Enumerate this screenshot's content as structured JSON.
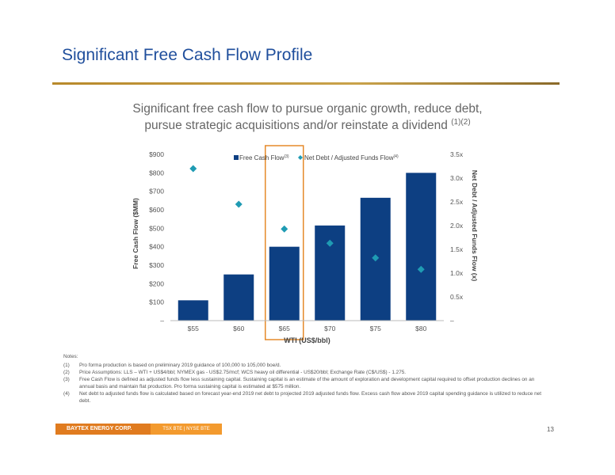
{
  "page": {
    "title": "Significant Free Cash Flow Profile",
    "subtitle_line1": "Significant free cash flow to pursue organic growth, reduce debt,",
    "subtitle_line2": "pursue strategic acquisitions and/or reinstate a dividend",
    "subtitle_sup": "(1)(2)",
    "page_number": "13"
  },
  "footer": {
    "brand": "BAYTEX ENERGY CORP.",
    "tickers": "TSX BTE  |  NYSE BTE"
  },
  "colors": {
    "bar": "#0d3f82",
    "diamond": "#1f9bb3",
    "highlight": "#e58a2a",
    "title": "#1f4e9c"
  },
  "chart_data": {
    "type": "bar",
    "categories": [
      "$55",
      "$60",
      "$65",
      "$70",
      "$75",
      "$80"
    ],
    "xlabel": "WTI (US$/bbl)",
    "ylabel": "Free Cash Flow ($MM)",
    "y2label": "Net Debt / Adjusted Funds Flow (x)",
    "ylim": [
      0,
      900
    ],
    "y2lim": [
      0,
      3.5
    ],
    "yticks": [
      "–",
      "$100",
      "$200",
      "$300",
      "$400",
      "$500",
      "$600",
      "$700",
      "$800",
      "$900"
    ],
    "y2ticks": [
      "–",
      "0.5x",
      "1.0x",
      "1.5x",
      "2.0x",
      "2.5x",
      "3.0x",
      "3.5x"
    ],
    "series": [
      {
        "name": "Free Cash Flow",
        "name_sup": "(3)",
        "type": "bar",
        "axis": "left",
        "values": [
          110,
          250,
          400,
          515,
          665,
          800
        ]
      },
      {
        "name": "Net Debt / Adjusted Funds Flow",
        "name_sup": "(4)",
        "type": "scatter",
        "axis": "right",
        "values": [
          3.2,
          2.45,
          1.93,
          1.63,
          1.32,
          1.08
        ]
      }
    ],
    "highlight_category": "$65",
    "legend": "top"
  },
  "notes": {
    "heading": "Notes:",
    "items": [
      {
        "num": "(1)",
        "text": "Pro forma production is based on preliminary 2019 guidance of 100,000 to 105,000 boe/d."
      },
      {
        "num": "(2)",
        "text": "Price Assumptions: LLS – WTI + US$4/bbl; NYMEX gas - US$2.75/mcf; WCS heavy oil differential - US$20/bbl; Exchange Rate (C$/US$) - 1.275."
      },
      {
        "num": "(3)",
        "text": "Free Cash Flow is defined as adjusted funds flow less sustaining capital. Sustaining capital is an estimate of the amount of exploration and development capital required to offset production declines on an annual basis and maintain flat production. Pro forma sustaining capital is estimated at $575 million."
      },
      {
        "num": "(4)",
        "text": "Net debt to adjusted funds flow is calculated based on forecast year-end 2019 net debt to projected 2019 adjusted funds flow. Excess cash flow above 2019 capital spending guidance is utilized to reduce net debt."
      }
    ]
  }
}
